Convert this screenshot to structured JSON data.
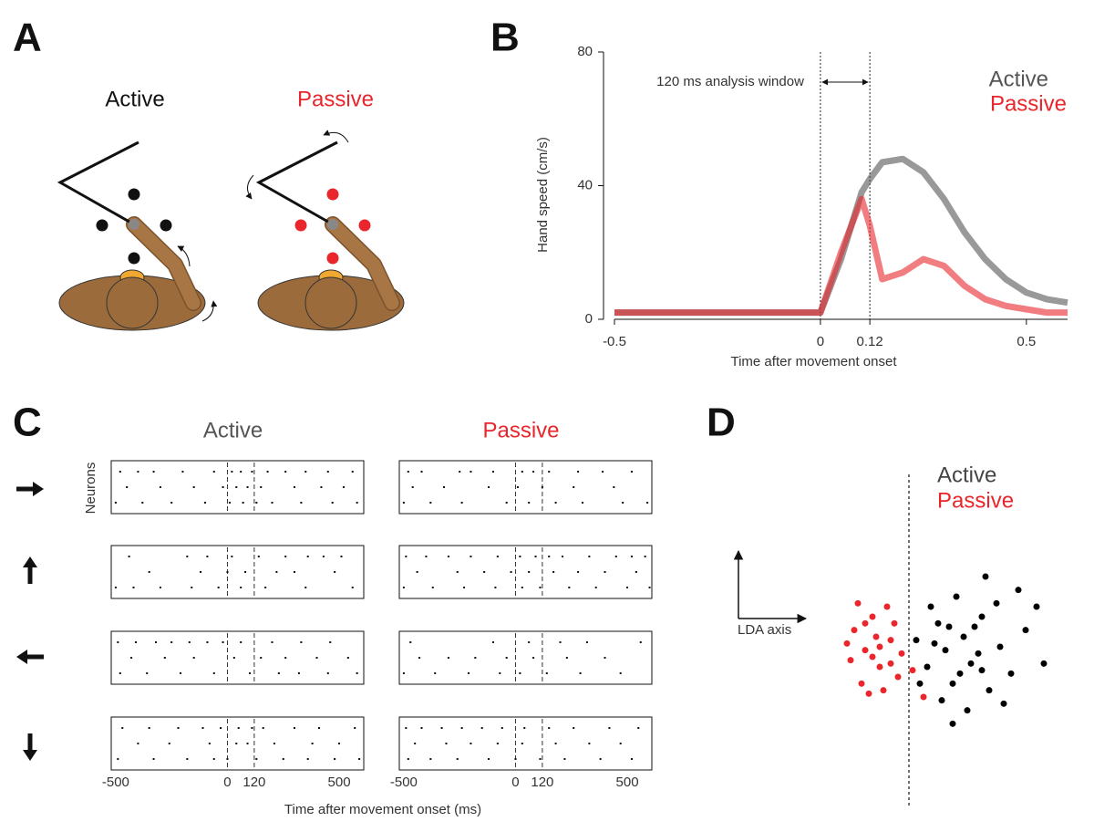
{
  "panel_labels": [
    "A",
    "B",
    "C",
    "D"
  ],
  "panel_a": {
    "labels": [
      "Active",
      "Passive"
    ]
  },
  "chart_data": [
    {
      "type": "line",
      "xlabel": "Time after movement onset",
      "ylabel": "Hand speed (cm/s)",
      "annotation": "120 ms analysis window",
      "xlim": [
        -0.5,
        0.6
      ],
      "ylim": [
        0,
        80
      ],
      "xticks": [
        -0.5,
        0,
        0.12,
        0.5
      ],
      "yticks": [
        0,
        40,
        80
      ],
      "x": [
        -0.5,
        -0.4,
        -0.3,
        -0.2,
        -0.1,
        0,
        0.05,
        0.1,
        0.12,
        0.15,
        0.2,
        0.25,
        0.3,
        0.35,
        0.4,
        0.45,
        0.5,
        0.55,
        0.6
      ],
      "series": [
        {
          "name": "Active",
          "color": "#555555",
          "values": [
            2,
            2,
            2,
            2,
            2,
            2,
            18,
            38,
            42,
            47,
            48,
            44,
            36,
            26,
            18,
            12,
            8,
            6,
            5
          ]
        },
        {
          "name": "Passive",
          "color": "#e8262b",
          "values": [
            2,
            2,
            2,
            2,
            2,
            2,
            20,
            36,
            28,
            12,
            14,
            18,
            16,
            10,
            6,
            4,
            3,
            2,
            2
          ]
        }
      ]
    },
    {
      "type": "raster",
      "xlabel": "Time after movement onset (ms)",
      "ylabel": "Neurons",
      "xlim": [
        -520,
        610
      ],
      "xticks": [
        -500,
        0,
        120,
        500
      ],
      "conditions": [
        {
          "name": "Active",
          "color": "#555555",
          "panels": [
            [
              [
                -480,
                -400,
                -330,
                -200,
                -60,
                20,
                60,
                110,
                180,
                260,
                350,
                450,
                560
              ],
              [
                -450,
                -300,
                -150,
                -20,
                40,
                90,
                150,
                300,
                420,
                520
              ],
              [
                -500,
                -380,
                -250,
                -100,
                10,
                70,
                130,
                200,
                330,
                470,
                580
              ]
            ],
            [
              [
                -440,
                -180,
                -90,
                20,
                140,
                260,
                360,
                430,
                510
              ],
              [
                -350,
                -120,
                0,
                80,
                220,
                300,
                480
              ],
              [
                -500,
                -420,
                -300,
                -160,
                -40,
                60,
                170,
                350,
                560
              ]
            ],
            [
              [
                -490,
                -410,
                -320,
                -250,
                -170,
                -90,
                -20,
                60,
                200,
                330,
                460
              ],
              [
                -430,
                -280,
                -150,
                30,
                150,
                260,
                400,
                540
              ],
              [
                -480,
                -360,
                -210,
                -60,
                100,
                230,
                320,
                450,
                580
              ]
            ],
            [
              [
                -470,
                -350,
                -220,
                -110,
                -30,
                50,
                110,
                160,
                300,
                410,
                570
              ],
              [
                -400,
                -260,
                -80,
                40,
                90,
                210,
                380,
                500
              ],
              [
                -490,
                -330,
                -180,
                -60,
                0,
                130,
                250,
                360,
                480,
                590
              ]
            ]
          ]
        },
        {
          "name": "Passive",
          "color": "#e8262b",
          "panels": [
            [
              [
                -480,
                -420,
                -250,
                -200,
                -100,
                30,
                80,
                150,
                280,
                390,
                520
              ],
              [
                -460,
                -320,
                -120,
                10,
                120,
                260,
                440
              ],
              [
                -500,
                -380,
                -240,
                -40,
                60,
                180,
                300,
                480,
                590
              ]
            ],
            [
              [
                -490,
                -400,
                -300,
                -200,
                -80,
                20,
                90,
                150,
                210,
                330,
                450,
                520,
                580
              ],
              [
                -440,
                -260,
                -140,
                -20,
                60,
                170,
                280,
                400,
                540
              ],
              [
                -500,
                -370,
                -230,
                -90,
                30,
                110,
                240,
                360,
                500,
                600
              ]
            ],
            [
              [
                -470,
                -100,
                60,
                200,
                320,
                560
              ],
              [
                -430,
                -300,
                -180,
                -40,
                80,
                230,
                400
              ],
              [
                -500,
                -360,
                -210,
                -70,
                20,
                140,
                290,
                470
              ]
            ],
            [
              [
                -490,
                -420,
                -330,
                -240,
                -150,
                -60,
                40,
                150,
                260,
                420,
                550
              ],
              [
                -450,
                -310,
                -200,
                -80,
                30,
                180,
                330,
                470
              ],
              [
                -480,
                -380,
                -260,
                -120,
                0,
                110,
                220,
                380,
                520
              ]
            ]
          ]
        }
      ]
    },
    {
      "type": "scatter",
      "xlabel": "LDA axis",
      "xlim": [
        -3,
        4
      ],
      "ylim": [
        -3,
        3
      ],
      "series": [
        {
          "name": "Active",
          "color": "#000000",
          "x": [
            0.2,
            0.5,
            0.8,
            1.0,
            1.2,
            1.5,
            1.7,
            2.0,
            2.2,
            0.6,
            1.3,
            1.8,
            2.5,
            2.8,
            3.2,
            0.9,
            1.6,
            2.4,
            3.5,
            0.3,
            1.1,
            2.0,
            2.6,
            3.0,
            1.4,
            0.7,
            1.9,
            3.7,
            2.1,
            1.2
          ],
          "values": [
            0.5,
            -0.3,
            1.0,
            0.2,
            -0.8,
            0.6,
            -0.2,
            1.2,
            -1.0,
            1.5,
            1.8,
            0.9,
            0.3,
            -0.5,
            0.8,
            -1.3,
            -1.6,
            1.6,
            1.5,
            -0.8,
            0.9,
            -0.4,
            -1.4,
            2.0,
            -0.5,
            0.4,
            0.1,
            -0.2,
            2.4,
            -2.0
          ]
        },
        {
          "name": "Passive",
          "color": "#e8262b",
          "x": [
            -1.5,
            -1.2,
            -1.0,
            -0.8,
            -1.6,
            -0.5,
            -0.3,
            -1.3,
            -0.9,
            -0.6,
            -1.4,
            -0.2,
            -1.1,
            -0.7,
            -1.7,
            -0.4,
            0.1,
            0.4,
            -1.0,
            -0.5,
            -1.2,
            -0.8
          ],
          "values": [
            0.8,
            0.2,
            1.2,
            -0.3,
            -0.1,
            0.5,
            -0.6,
            -0.8,
            0.6,
            1.5,
            1.6,
            0.1,
            -1.1,
            -1.0,
            0.4,
            1.0,
            -0.4,
            -1.2,
            0.0,
            -0.2,
            1.0,
            0.3
          ]
        }
      ]
    }
  ]
}
